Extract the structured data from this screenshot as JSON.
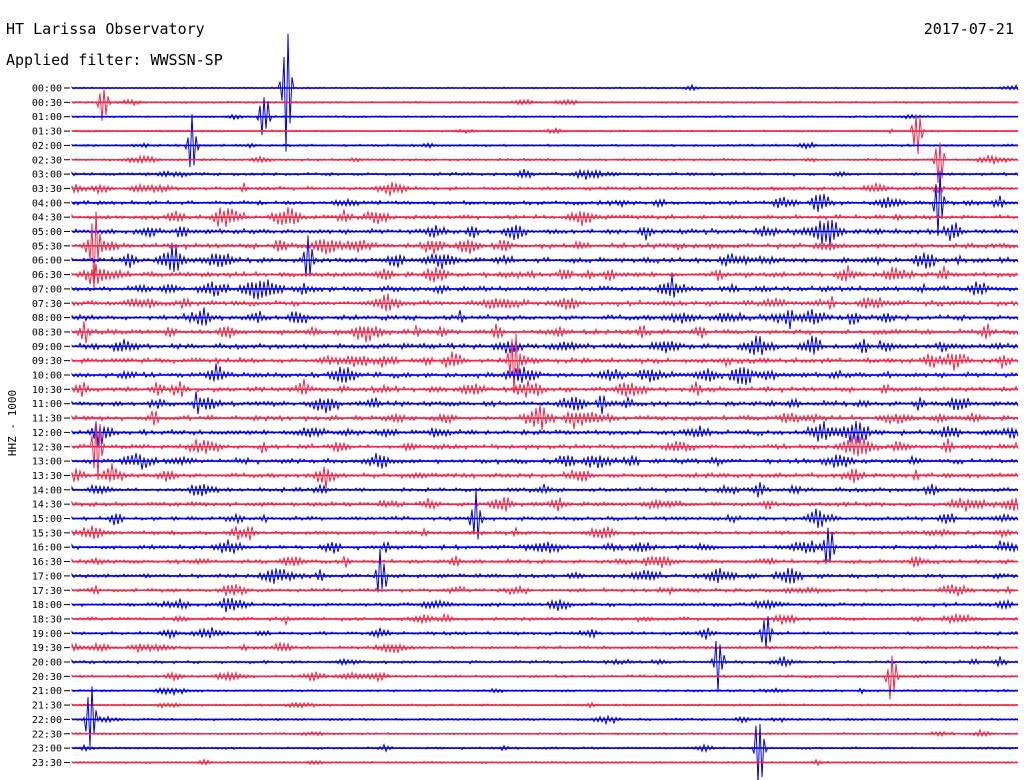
{
  "header": {
    "station": "HT Larissa Observatory",
    "filter": "Applied filter: WWSSN-SP",
    "date": "2017-07-21"
  },
  "chart_data": {
    "type": "line",
    "title": "HT Larissa Observatory",
    "subtitle": "Applied filter: WWSSN-SP",
    "date": "2017-07-21",
    "ylabel": "HHZ - 1000",
    "colors": [
      "#0000e6",
      "#f0284a"
    ],
    "rows": [
      "00:00",
      "00:30",
      "01:00",
      "01:30",
      "02:00",
      "02:30",
      "03:00",
      "03:30",
      "04:00",
      "04:30",
      "05:00",
      "05:30",
      "06:00",
      "06:30",
      "07:00",
      "07:30",
      "08:00",
      "08:30",
      "09:00",
      "09:30",
      "10:00",
      "10:30",
      "11:00",
      "11:30",
      "12:00",
      "12:30",
      "13:00",
      "13:30",
      "14:00",
      "14:30",
      "15:00",
      "15:30",
      "16:00",
      "16:30",
      "17:00",
      "17:30",
      "18:00",
      "18:30",
      "19:00",
      "19:30",
      "20:00",
      "20:30",
      "21:00",
      "21:30",
      "22:00",
      "22:30",
      "23:00",
      "23:30"
    ],
    "row_minutes": 30,
    "noise_level": [
      0.4,
      0.5,
      0.4,
      0.5,
      0.8,
      0.9,
      1.2,
      1.5,
      1.8,
      2.0,
      2.5,
      2.6,
      2.6,
      2.5,
      2.6,
      2.5,
      2.6,
      2.6,
      2.6,
      2.5,
      2.6,
      2.5,
      2.6,
      2.5,
      2.4,
      2.4,
      2.3,
      2.2,
      2.0,
      2.0,
      1.8,
      1.8,
      2.0,
      1.9,
      1.9,
      1.7,
      1.6,
      1.5,
      1.3,
      1.3,
      1.2,
      1.0,
      0.8,
      0.7,
      0.8,
      0.6,
      0.7,
      0.6
    ],
    "events": [
      {
        "row": "00:00",
        "minute": 6.8,
        "amplitude": 9
      },
      {
        "row": "00:30",
        "minute": 1.0,
        "amplitude": 3
      },
      {
        "row": "01:00",
        "minute": 6.1,
        "amplitude": 4
      },
      {
        "row": "01:30",
        "minute": 26.8,
        "amplitude": 4
      },
      {
        "row": "02:00",
        "minute": 3.8,
        "amplitude": 4
      },
      {
        "row": "02:30",
        "minute": 27.5,
        "amplitude": 4
      },
      {
        "row": "04:00",
        "minute": 27.5,
        "amplitude": 5
      },
      {
        "row": "05:30",
        "minute": 0.7,
        "amplitude": 5
      },
      {
        "row": "06:00",
        "minute": 7.5,
        "amplitude": 4
      },
      {
        "row": "09:30",
        "minute": 14.0,
        "amplitude": 5
      },
      {
        "row": "12:30",
        "minute": 0.8,
        "amplitude": 5
      },
      {
        "row": "15:00",
        "minute": 12.8,
        "amplitude": 4
      },
      {
        "row": "16:00",
        "minute": 24.0,
        "amplitude": 4
      },
      {
        "row": "17:00",
        "minute": 9.8,
        "amplitude": 4
      },
      {
        "row": "19:00",
        "minute": 22.0,
        "amplitude": 4
      },
      {
        "row": "20:00",
        "minute": 20.5,
        "amplitude": 4
      },
      {
        "row": "20:30",
        "minute": 26.0,
        "amplitude": 4
      },
      {
        "row": "22:00",
        "minute": 0.6,
        "amplitude": 5
      },
      {
        "row": "23:00",
        "minute": 21.8,
        "amplitude": 6
      }
    ]
  }
}
